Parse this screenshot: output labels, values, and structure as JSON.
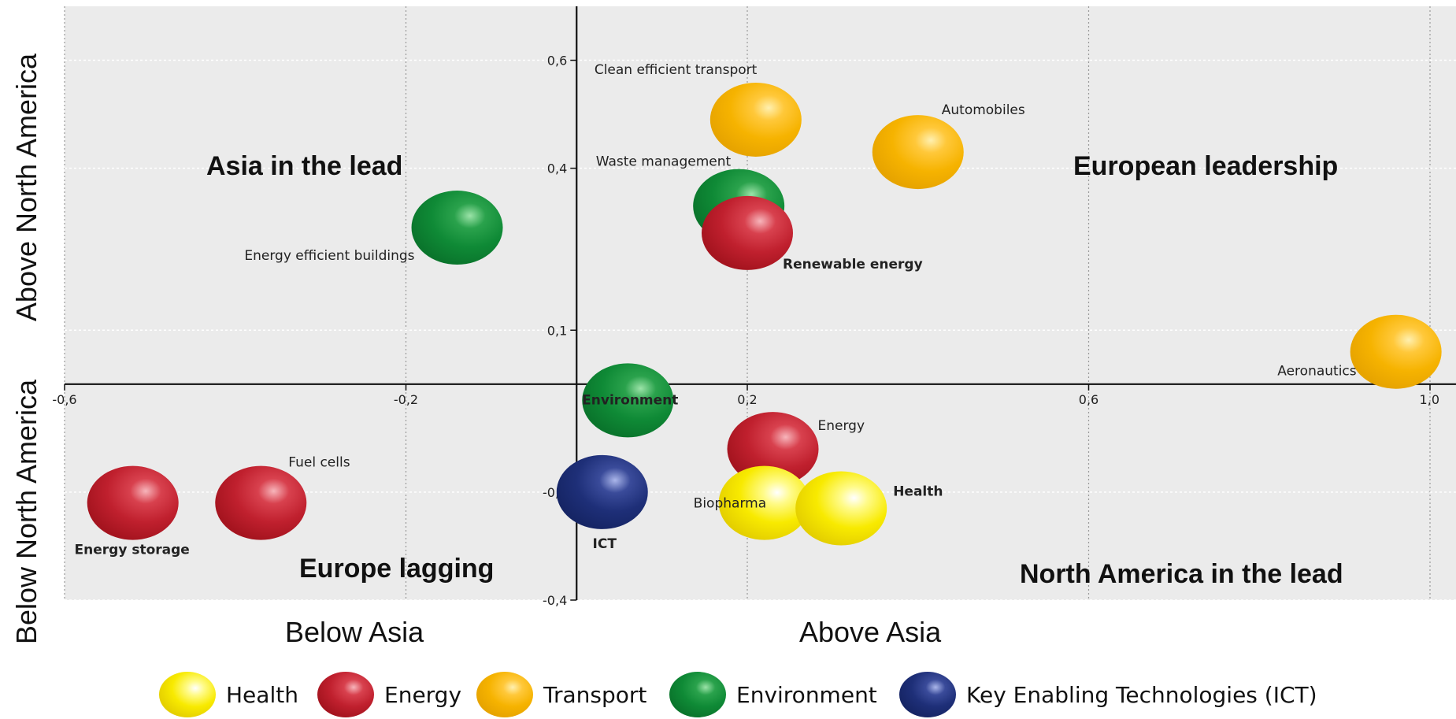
{
  "chart_data": {
    "type": "scatter",
    "xlim": [
      -0.6,
      1.0
    ],
    "ylim": [
      -0.4,
      0.6
    ],
    "x_ticks": [
      "-0,6",
      "-0,2",
      "0,2",
      "0,6",
      "1,0"
    ],
    "y_ticks": [
      "-0,4",
      "-0,2",
      "0,1",
      "0,4",
      "0,6"
    ],
    "grid": true,
    "quadrant_labels": {
      "top_left": "Asia in the lead",
      "top_right": "European leadership",
      "bottom_left": "Europe lagging",
      "bottom_right": "North America in the lead"
    },
    "axis_titles": {
      "x_left": "Below Asia",
      "x_right": "Above Asia",
      "y_top": "Above North America",
      "y_bottom": "Below North America"
    },
    "colors": {
      "Health": "#f5e600",
      "Energy": "#c0202e",
      "Transport": "#f5b300",
      "Environment": "#0f8a36",
      "ICT": "#1e2f78"
    },
    "points": [
      {
        "label": "Clean efficient transport",
        "category": "Transport",
        "x": 0.21,
        "y": 0.49
      },
      {
        "label": "Automobiles",
        "category": "Transport",
        "x": 0.4,
        "y": 0.43
      },
      {
        "label": "Aeronautics",
        "category": "Transport",
        "x": 0.96,
        "y": 0.06
      },
      {
        "label": "Waste management",
        "category": "Environment",
        "x": 0.19,
        "y": 0.33
      },
      {
        "label": "Renewable energy",
        "category": "Energy",
        "x": 0.2,
        "y": 0.28
      },
      {
        "label": "Energy efficient buildings",
        "category": "Environment",
        "x": -0.14,
        "y": 0.29
      },
      {
        "label": "Environment",
        "category": "Environment",
        "x": 0.06,
        "y": -0.03
      },
      {
        "label": "Energy",
        "category": "Energy",
        "x": 0.23,
        "y": -0.12
      },
      {
        "label": "ICT",
        "category": "ICT",
        "x": 0.03,
        "y": -0.2
      },
      {
        "label": "Biopharma",
        "category": "Health",
        "x": 0.22,
        "y": -0.22
      },
      {
        "label": "Health",
        "category": "Health",
        "x": 0.31,
        "y": -0.23
      },
      {
        "label": "Fuel cells",
        "category": "Energy",
        "x": -0.37,
        "y": -0.22
      },
      {
        "label": "Energy storage",
        "category": "Energy",
        "x": -0.52,
        "y": -0.22
      }
    ],
    "legend": [
      {
        "name": "Health",
        "category": "Health"
      },
      {
        "name": "Energy",
        "category": "Energy"
      },
      {
        "name": "Transport",
        "category": "Transport"
      },
      {
        "name": "Environment",
        "category": "Environment"
      },
      {
        "name": "Key Enabling Technologies (ICT)",
        "category": "ICT"
      }
    ]
  }
}
